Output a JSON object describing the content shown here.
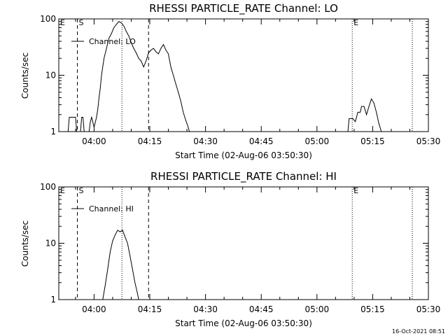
{
  "footer_timestamp": "16-Oct-2021 08:51",
  "chart_data": [
    {
      "type": "line",
      "title": "RHESSI PARTICLE_RATE Channel: LO",
      "xlabel": "Start Time (02-Aug-06 03:50:30)",
      "ylabel": "Counts/sec",
      "legend": "Channel: LO",
      "legend_position": "top-left",
      "yscale": "log",
      "xlim": [
        "03:50:30",
        "05:30:00"
      ],
      "ylim": [
        1,
        100
      ],
      "xticks": [
        "04:00",
        "04:15",
        "04:30",
        "04:45",
        "05:00",
        "05:15",
        "05:30"
      ],
      "yticks": [
        "1",
        "10",
        "100"
      ],
      "markers": [
        {
          "label": "E",
          "time": "03:50:30",
          "style": "solid"
        },
        {
          "label": "S",
          "time": "03:55:30",
          "style": "dashed"
        },
        {
          "label": "",
          "time": "04:07:30",
          "style": "dotted"
        },
        {
          "label": "",
          "time": "04:14:40",
          "style": "dashed"
        },
        {
          "label": "E",
          "time": "05:09:30",
          "style": "dotted"
        },
        {
          "label": "",
          "time": "05:25:40",
          "style": "dotted"
        }
      ],
      "series": [
        {
          "x": [
            "03:53:00",
            "03:53:20",
            "03:55:00",
            "03:55:20",
            "03:56:20",
            "03:56:40",
            "03:57:00",
            "03:57:20",
            "03:58:40",
            "03:59:00",
            "03:59:20",
            "04:00:00",
            "04:00:40",
            "04:01:00",
            "04:01:20",
            "04:01:40",
            "04:02:00",
            "04:02:40",
            "04:03:20",
            "04:04:00",
            "04:04:40",
            "04:05:20",
            "04:06:00",
            "04:06:40",
            "04:07:20",
            "04:08:00",
            "04:08:40",
            "04:09:20",
            "04:10:00",
            "04:10:40",
            "04:11:20",
            "04:12:00",
            "04:12:40",
            "04:13:20",
            "04:14:00",
            "04:14:40",
            "04:15:20",
            "04:16:00",
            "04:16:40",
            "04:17:20",
            "04:18:00",
            "04:18:40",
            "04:19:20",
            "04:20:00",
            "04:20:40",
            "04:21:20",
            "04:22:00",
            "04:22:40",
            "04:23:20",
            "04:24:00",
            "04:24:40",
            "04:25:20",
            "04:25:40"
          ],
          "y": [
            1,
            1.8,
            1.8,
            1,
            1,
            1.8,
            1.8,
            1,
            1,
            1.5,
            1.8,
            1.2,
            1.8,
            2.5,
            4,
            6,
            10,
            20,
            30,
            45,
            55,
            70,
            80,
            90,
            85,
            75,
            60,
            50,
            38,
            30,
            25,
            20,
            18,
            14,
            18,
            25,
            28,
            30,
            26,
            24,
            30,
            35,
            28,
            24,
            14,
            10,
            7,
            5,
            3.5,
            2.2,
            1.6,
            1.2,
            1
          ]
        },
        {
          "x": [
            "05:08:20",
            "05:08:40",
            "05:09:40",
            "05:10:20",
            "05:11:00",
            "05:11:40",
            "05:12:00",
            "05:12:40",
            "05:13:20",
            "05:14:00",
            "05:14:40",
            "05:15:20",
            "05:16:00",
            "05:16:40",
            "05:17:20"
          ],
          "y": [
            1,
            1.7,
            1.7,
            1.5,
            2.2,
            2.2,
            2.8,
            2.8,
            2.0,
            2.8,
            3.8,
            3.2,
            2.2,
            1.4,
            1
          ]
        }
      ]
    },
    {
      "type": "line",
      "title": "RHESSI PARTICLE_RATE Channel: HI",
      "xlabel": "Start Time (02-Aug-06 03:50:30)",
      "ylabel": "Counts/sec",
      "legend": "Channel: HI",
      "legend_position": "top-left",
      "yscale": "log",
      "xlim": [
        "03:50:30",
        "05:30:00"
      ],
      "ylim": [
        1,
        100
      ],
      "xticks": [
        "04:00",
        "04:15",
        "04:30",
        "04:45",
        "05:00",
        "05:15",
        "05:30"
      ],
      "yticks": [
        "1",
        "10",
        "100"
      ],
      "markers": [
        {
          "label": "E",
          "time": "03:50:30",
          "style": "solid"
        },
        {
          "label": "S",
          "time": "03:55:30",
          "style": "dashed"
        },
        {
          "label": "",
          "time": "04:07:30",
          "style": "dotted"
        },
        {
          "label": "",
          "time": "04:14:40",
          "style": "dashed"
        },
        {
          "label": "E",
          "time": "05:09:30",
          "style": "dotted"
        },
        {
          "label": "",
          "time": "05:25:40",
          "style": "dotted"
        }
      ],
      "series": [
        {
          "x": [
            "04:02:20",
            "04:03:00",
            "04:03:40",
            "04:04:20",
            "04:05:00",
            "04:05:40",
            "04:06:20",
            "04:07:00",
            "04:07:40",
            "04:08:20",
            "04:09:00",
            "04:09:40",
            "04:10:20",
            "04:11:00",
            "04:11:40",
            "04:12:00"
          ],
          "y": [
            1,
            1.8,
            3.5,
            7,
            11,
            14,
            17,
            16,
            17,
            13,
            10,
            6,
            3.5,
            2,
            1.3,
            1
          ]
        }
      ]
    }
  ]
}
